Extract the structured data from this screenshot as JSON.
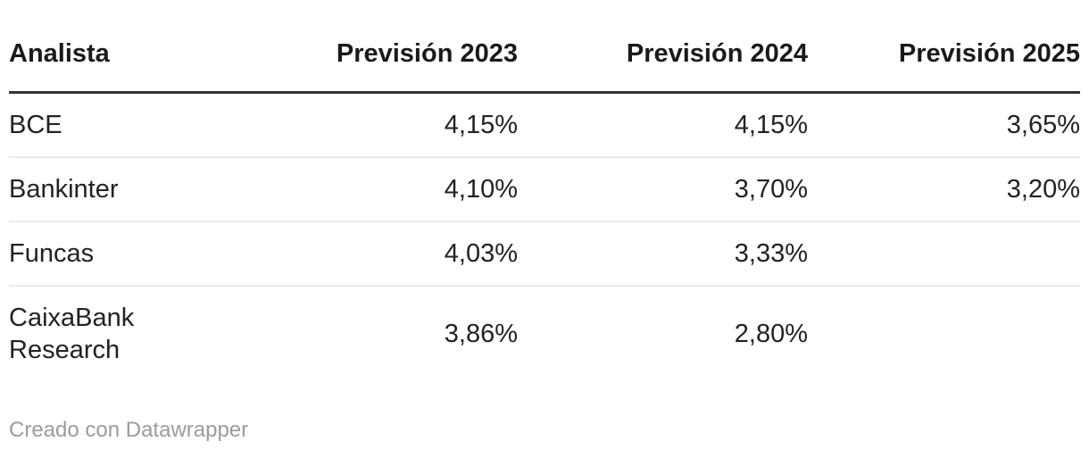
{
  "chart_data": {
    "type": "table",
    "columns": [
      "Analista",
      "Previsión 2023",
      "Previsión 2024",
      "Previsión 2025"
    ],
    "rows": [
      [
        "BCE",
        "4,15%",
        "4,15%",
        "3,65%"
      ],
      [
        "Bankinter",
        "4,10%",
        "3,70%",
        "3,20%"
      ],
      [
        "Funcas",
        "4,03%",
        "3,33%",
        ""
      ],
      [
        "CaixaBank Research",
        "3,86%",
        "2,80%",
        ""
      ]
    ],
    "values_numeric_percent": [
      [
        4.15,
        4.15,
        3.65
      ],
      [
        4.1,
        3.7,
        3.2
      ],
      [
        4.03,
        3.33,
        null
      ],
      [
        3.86,
        2.8,
        null
      ]
    ],
    "column_alignment": [
      "left",
      "right",
      "right",
      "right"
    ],
    "header_rule_visible": true,
    "row_rules_visible": true
  },
  "footer": {
    "attribution": "Creado con Datawrapper"
  },
  "colors": {
    "background": "#ffffff",
    "header_text": "#1a1a1a",
    "body_text": "#222222",
    "header_rule": "#333333",
    "row_rule": "#ebebeb",
    "footer_text": "#9b9b9b"
  }
}
